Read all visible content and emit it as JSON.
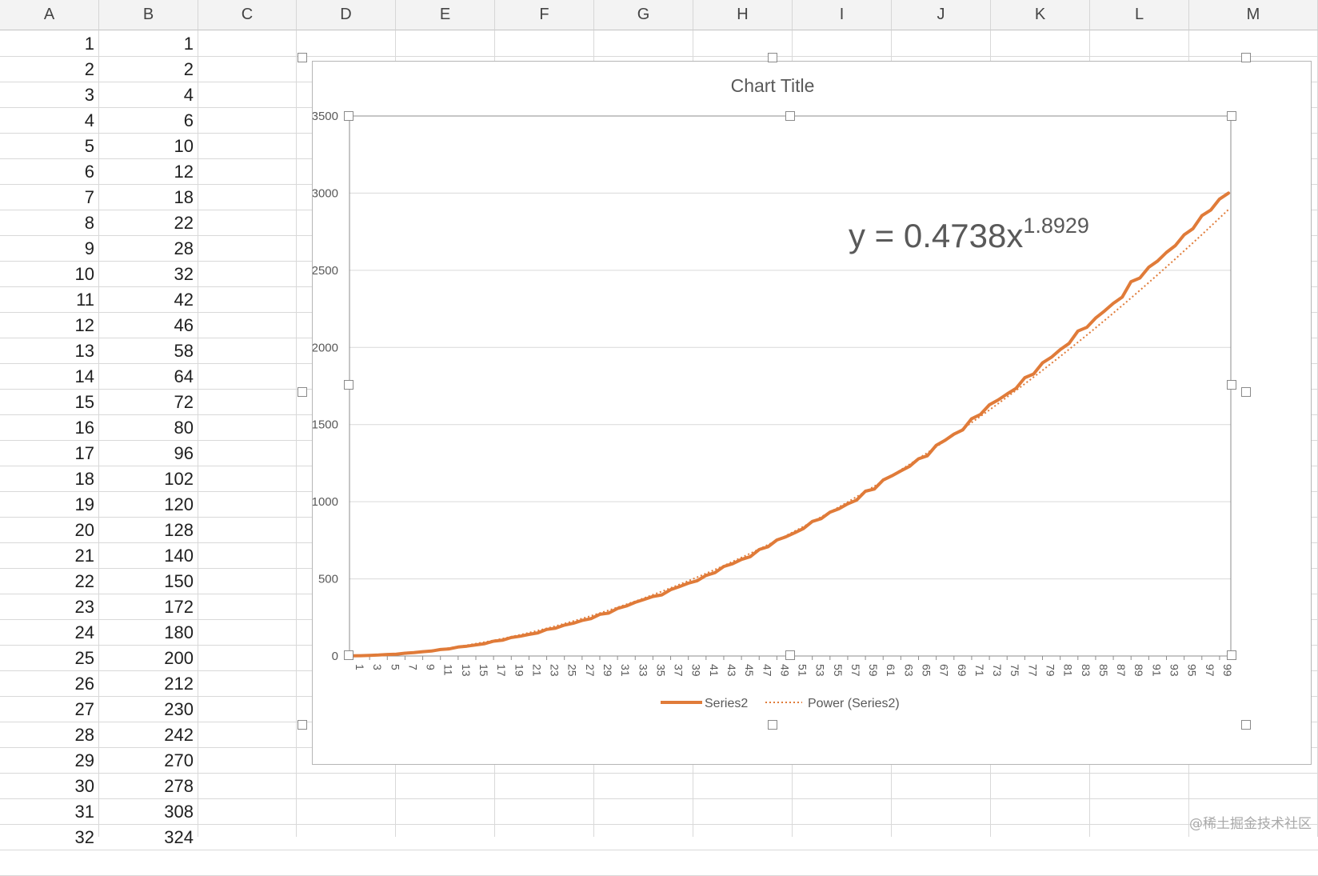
{
  "columns": [
    "A",
    "B",
    "C",
    "D",
    "E",
    "F",
    "G",
    "H",
    "I",
    "J",
    "K",
    "L",
    "M"
  ],
  "rows": [
    {
      "a": "1",
      "b": "1"
    },
    {
      "a": "2",
      "b": "2"
    },
    {
      "a": "3",
      "b": "4"
    },
    {
      "a": "4",
      "b": "6"
    },
    {
      "a": "5",
      "b": "10"
    },
    {
      "a": "6",
      "b": "12"
    },
    {
      "a": "7",
      "b": "18"
    },
    {
      "a": "8",
      "b": "22"
    },
    {
      "a": "9",
      "b": "28"
    },
    {
      "a": "10",
      "b": "32"
    },
    {
      "a": "11",
      "b": "42"
    },
    {
      "a": "12",
      "b": "46"
    },
    {
      "a": "13",
      "b": "58"
    },
    {
      "a": "14",
      "b": "64"
    },
    {
      "a": "15",
      "b": "72"
    },
    {
      "a": "16",
      "b": "80"
    },
    {
      "a": "17",
      "b": "96"
    },
    {
      "a": "18",
      "b": "102"
    },
    {
      "a": "19",
      "b": "120"
    },
    {
      "a": "20",
      "b": "128"
    },
    {
      "a": "21",
      "b": "140"
    },
    {
      "a": "22",
      "b": "150"
    },
    {
      "a": "23",
      "b": "172"
    },
    {
      "a": "24",
      "b": "180"
    },
    {
      "a": "25",
      "b": "200"
    },
    {
      "a": "26",
      "b": "212"
    },
    {
      "a": "27",
      "b": "230"
    },
    {
      "a": "28",
      "b": "242"
    },
    {
      "a": "29",
      "b": "270"
    },
    {
      "a": "30",
      "b": "278"
    },
    {
      "a": "31",
      "b": "308"
    },
    {
      "a": "32",
      "b": "324"
    }
  ],
  "watermark": "@稀土掘金技术社区",
  "colors": {
    "series": "#e07b39",
    "trend": "#e07b39",
    "grid": "#d9d9d9",
    "axis_text": "#595959"
  },
  "chart_data": {
    "type": "line",
    "title": "Chart Title",
    "xlabel": "",
    "ylabel": "",
    "ylim": [
      0,
      3500
    ],
    "yticks": [
      0,
      500,
      1000,
      1500,
      2000,
      2500,
      3000,
      3500
    ],
    "x": [
      1,
      2,
      3,
      4,
      5,
      6,
      7,
      8,
      9,
      10,
      11,
      12,
      13,
      14,
      15,
      16,
      17,
      18,
      19,
      20,
      21,
      22,
      23,
      24,
      25,
      26,
      27,
      28,
      29,
      30,
      31,
      32,
      33,
      34,
      35,
      36,
      37,
      38,
      39,
      40,
      41,
      42,
      43,
      44,
      45,
      46,
      47,
      48,
      49,
      50,
      51,
      52,
      53,
      54,
      55,
      56,
      57,
      58,
      59,
      60,
      61,
      62,
      63,
      64,
      65,
      66,
      67,
      68,
      69,
      70,
      71,
      72,
      73,
      74,
      75,
      76,
      77,
      78,
      79,
      80,
      81,
      82,
      83,
      84,
      85,
      86,
      87,
      88,
      89,
      90,
      91,
      92,
      93,
      94,
      95,
      96,
      97,
      98,
      99,
      100
    ],
    "x_tick_labels": [
      "1",
      "3",
      "5",
      "7",
      "9",
      "11",
      "13",
      "15",
      "17",
      "19",
      "21",
      "23",
      "25",
      "27",
      "29",
      "31",
      "33",
      "35",
      "37",
      "39",
      "41",
      "43",
      "45",
      "47",
      "49",
      "51",
      "53",
      "55",
      "57",
      "59",
      "61",
      "63",
      "65",
      "67",
      "69",
      "71",
      "73",
      "75",
      "77",
      "79",
      "81",
      "83",
      "85",
      "87",
      "89",
      "91",
      "93",
      "95",
      "97",
      "99"
    ],
    "series": [
      {
        "name": "Series2",
        "style": "solid",
        "values": [
          1,
          2,
          4,
          6,
          10,
          12,
          18,
          22,
          28,
          32,
          42,
          46,
          58,
          64,
          72,
          80,
          96,
          102,
          120,
          128,
          140,
          150,
          172,
          180,
          200,
          212,
          230,
          242,
          270,
          278,
          308,
          324,
          348,
          366,
          386,
          396,
          430,
          450,
          472,
          488,
          522,
          540,
          580,
          598,
          626,
          644,
          690,
          708,
          752,
          772,
          798,
          826,
          872,
          890,
          932,
          954,
          986,
          1010,
          1068,
          1082,
          1140,
          1168,
          1200,
          1230,
          1278,
          1298,
          1366,
          1398,
          1438,
          1466,
          1538,
          1566,
          1628,
          1660,
          1698,
          1734,
          1804,
          1828,
          1900,
          1936,
          1986,
          2026,
          2106,
          2130,
          2190,
          2236,
          2286,
          2326,
          2426,
          2450,
          2520,
          2560,
          2616,
          2660,
          2730,
          2770,
          2854,
          2890,
          2962,
          3000
        ]
      },
      {
        "name": "Power (Series2)",
        "style": "dotted",
        "equation": {
          "a": 0.4738,
          "b": 1.8929
        }
      }
    ],
    "equation_label": {
      "text": "y = 0.4738x",
      "sup": "1.8929"
    },
    "legend": "bottom",
    "grid": true
  }
}
